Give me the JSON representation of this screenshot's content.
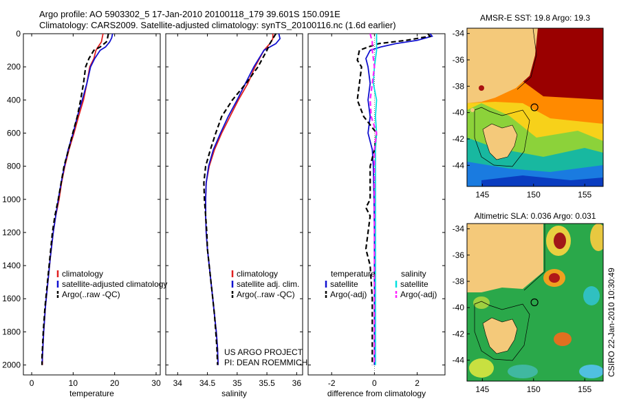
{
  "title": {
    "line1": "Argo profile: AO 5903302_5 17-Jan-2010 20100118_179 39.601S 150.091E",
    "line2": "Climatology: CARS2009. Satellite-adjusted climatology: synTS_20100116.nc (1.6d earlier)"
  },
  "colors": {
    "climatology": "#e02020",
    "satellite": "#1010d0",
    "argo": "#000000",
    "sat_salinity": "#00e0e0",
    "argo_salinity": "#ff20ff"
  },
  "chart_data": [
    {
      "type": "line",
      "name": "temperature-panel",
      "xlabel": "temperature",
      "ylabel": "",
      "xlim": [
        -2,
        31
      ],
      "ylim": [
        2060,
        0
      ],
      "xticks": [
        0,
        10,
        20,
        30
      ],
      "yticks": [
        0,
        200,
        400,
        600,
        800,
        1000,
        1200,
        1400,
        1600,
        1800,
        2000
      ],
      "legend": [
        "climatology",
        "satellite-adjusted climatology",
        "Argo(..raw -QC)"
      ],
      "series": [
        {
          "name": "climatology",
          "style": "solid",
          "color": "#e02020",
          "points": [
            [
              17.2,
              0
            ],
            [
              17.0,
              25
            ],
            [
              16.8,
              50
            ],
            [
              16.0,
              80
            ],
            [
              15.5,
              100
            ],
            [
              15.0,
              150
            ],
            [
              14.0,
              200
            ],
            [
              13.3,
              300
            ],
            [
              12.5,
              400
            ],
            [
              11.3,
              500
            ],
            [
              10.2,
              600
            ],
            [
              9.0,
              700
            ],
            [
              8.0,
              800
            ],
            [
              7.2,
              900
            ],
            [
              6.6,
              1000
            ],
            [
              5.8,
              1100
            ],
            [
              5.2,
              1200
            ],
            [
              4.5,
              1350
            ],
            [
              3.9,
              1500
            ],
            [
              3.3,
              1650
            ],
            [
              2.9,
              1800
            ],
            [
              2.6,
              1950
            ],
            [
              2.6,
              2000
            ]
          ]
        },
        {
          "name": "satellite",
          "style": "solid",
          "color": "#1010d0",
          "points": [
            [
              19.5,
              0
            ],
            [
              19.3,
              25
            ],
            [
              18.8,
              50
            ],
            [
              17.8,
              80
            ],
            [
              16.5,
              100
            ],
            [
              15.2,
              150
            ],
            [
              14.2,
              200
            ],
            [
              13.3,
              300
            ],
            [
              12.2,
              400
            ],
            [
              11.0,
              500
            ],
            [
              10.0,
              600
            ],
            [
              8.8,
              700
            ],
            [
              7.9,
              800
            ],
            [
              7.1,
              900
            ],
            [
              6.4,
              1000
            ],
            [
              5.8,
              1100
            ],
            [
              5.2,
              1200
            ],
            [
              4.5,
              1350
            ],
            [
              3.9,
              1500
            ],
            [
              3.3,
              1650
            ],
            [
              2.9,
              1800
            ],
            [
              2.6,
              1950
            ],
            [
              2.5,
              2000
            ]
          ]
        },
        {
          "name": "argo",
          "style": "dashed",
          "color": "#000000",
          "points": [
            [
              18.5,
              0
            ],
            [
              18.3,
              25
            ],
            [
              18.0,
              50
            ],
            [
              16.5,
              80
            ],
            [
              15.0,
              100
            ],
            [
              13.8,
              150
            ],
            [
              13.0,
              200
            ],
            [
              12.5,
              300
            ],
            [
              11.8,
              400
            ],
            [
              11.0,
              500
            ],
            [
              9.9,
              600
            ],
            [
              8.9,
              700
            ],
            [
              7.8,
              800
            ],
            [
              7.1,
              900
            ],
            [
              6.4,
              1000
            ],
            [
              5.6,
              1100
            ],
            [
              5.0,
              1200
            ],
            [
              4.4,
              1350
            ],
            [
              3.8,
              1500
            ],
            [
              3.2,
              1650
            ],
            [
              2.8,
              1800
            ],
            [
              2.5,
              1950
            ],
            [
              2.5,
              2000
            ]
          ]
        }
      ]
    },
    {
      "type": "line",
      "name": "salinity-panel",
      "xlabel": "salinity",
      "ylabel": "",
      "xlim": [
        33.8,
        36.1
      ],
      "ylim": [
        2060,
        0
      ],
      "xticks": [
        34,
        34.5,
        35,
        35.5,
        36
      ],
      "yticks": [],
      "legend": [
        "climatology",
        "satellite adj. clim.",
        "Argo(..raw -QC)"
      ],
      "annotation": [
        "US ARGO PROJECT",
        "PI: DEAN ROEMMICH"
      ],
      "series": [
        {
          "name": "climatology",
          "style": "solid",
          "color": "#e02020",
          "points": [
            [
              35.6,
              0
            ],
            [
              35.6,
              30
            ],
            [
              35.55,
              60
            ],
            [
              35.45,
              100
            ],
            [
              35.3,
              200
            ],
            [
              35.18,
              300
            ],
            [
              35.02,
              400
            ],
            [
              34.88,
              500
            ],
            [
              34.74,
              600
            ],
            [
              34.62,
              700
            ],
            [
              34.53,
              800
            ],
            [
              34.48,
              900
            ],
            [
              34.47,
              1000
            ],
            [
              34.47,
              1100
            ],
            [
              34.48,
              1200
            ],
            [
              34.5,
              1300
            ],
            [
              34.53,
              1400
            ],
            [
              34.56,
              1500
            ],
            [
              34.59,
              1600
            ],
            [
              34.62,
              1700
            ],
            [
              34.65,
              1800
            ],
            [
              34.67,
              1900
            ],
            [
              34.68,
              2000
            ]
          ]
        },
        {
          "name": "satellite",
          "style": "solid",
          "color": "#1010d0",
          "points": [
            [
              35.7,
              0
            ],
            [
              35.72,
              30
            ],
            [
              35.65,
              60
            ],
            [
              35.45,
              100
            ],
            [
              35.28,
              200
            ],
            [
              35.14,
              300
            ],
            [
              35.0,
              400
            ],
            [
              34.85,
              500
            ],
            [
              34.72,
              600
            ],
            [
              34.6,
              700
            ],
            [
              34.52,
              800
            ],
            [
              34.48,
              900
            ],
            [
              34.47,
              1000
            ],
            [
              34.47,
              1100
            ],
            [
              34.48,
              1200
            ],
            [
              34.5,
              1300
            ],
            [
              34.53,
              1400
            ],
            [
              34.56,
              1500
            ],
            [
              34.59,
              1600
            ],
            [
              34.62,
              1700
            ],
            [
              34.65,
              1800
            ],
            [
              34.67,
              1900
            ],
            [
              34.68,
              2000
            ]
          ]
        },
        {
          "name": "argo",
          "style": "dashed",
          "color": "#000000",
          "points": [
            [
              35.65,
              0
            ],
            [
              35.6,
              30
            ],
            [
              35.55,
              60
            ],
            [
              35.5,
              100
            ],
            [
              35.35,
              200
            ],
            [
              35.15,
              300
            ],
            [
              34.92,
              400
            ],
            [
              34.74,
              500
            ],
            [
              34.64,
              600
            ],
            [
              34.55,
              700
            ],
            [
              34.47,
              800
            ],
            [
              34.44,
              900
            ],
            [
              34.45,
              1000
            ],
            [
              34.47,
              1100
            ],
            [
              34.49,
              1200
            ],
            [
              34.5,
              1300
            ],
            [
              34.53,
              1400
            ],
            [
              34.56,
              1500
            ],
            [
              34.59,
              1600
            ],
            [
              34.62,
              1700
            ],
            [
              34.64,
              1800
            ],
            [
              34.66,
              1900
            ],
            [
              34.67,
              2000
            ]
          ]
        }
      ]
    },
    {
      "type": "line",
      "name": "difference-panel",
      "xlabel": "difference from climatology",
      "ylabel": "",
      "xlim": [
        -3.1,
        3.3
      ],
      "ylim": [
        2060,
        0
      ],
      "xticks": [
        -2,
        0,
        2
      ],
      "yticks": [],
      "legend_headers": [
        "temperature",
        "salinity"
      ],
      "legend": [
        "satellite",
        "Argo(-adj)",
        "satellite",
        "Argo(-adj)"
      ],
      "series": [
        {
          "name": "temp-satellite",
          "style": "solid",
          "color": "#1010d0",
          "points": [
            [
              2.6,
              0
            ],
            [
              2.7,
              15
            ],
            [
              2.0,
              40
            ],
            [
              1.0,
              60
            ],
            [
              0.3,
              80
            ],
            [
              -0.2,
              100
            ],
            [
              -0.4,
              150
            ],
            [
              -0.3,
              200
            ],
            [
              -0.2,
              300
            ],
            [
              -0.3,
              400
            ],
            [
              -0.2,
              500
            ],
            [
              -0.3,
              600
            ],
            [
              -0.1,
              700
            ],
            [
              -0.05,
              800
            ],
            [
              -0.02,
              1000
            ],
            [
              0,
              1200
            ],
            [
              0,
              1600
            ],
            [
              0,
              2000
            ]
          ]
        },
        {
          "name": "temp-argo",
          "style": "dashed",
          "color": "#000000",
          "points": [
            [
              2.5,
              0
            ],
            [
              2.6,
              15
            ],
            [
              1.5,
              40
            ],
            [
              0.2,
              60
            ],
            [
              -0.3,
              80
            ],
            [
              -0.7,
              100
            ],
            [
              -0.8,
              160
            ],
            [
              -0.6,
              200
            ],
            [
              -0.7,
              300
            ],
            [
              -0.8,
              400
            ],
            [
              -0.5,
              500
            ],
            [
              0.1,
              600
            ],
            [
              0.0,
              700
            ],
            [
              -0.2,
              800
            ],
            [
              -0.2,
              900
            ],
            [
              -0.2,
              1000
            ],
            [
              -0.4,
              1050
            ],
            [
              -0.2,
              1100
            ],
            [
              -0.4,
              1300
            ],
            [
              -0.2,
              1400
            ],
            [
              -0.1,
              1600
            ],
            [
              -0.1,
              1800
            ],
            [
              -0.1,
              2000
            ]
          ]
        },
        {
          "name": "sal-satellite",
          "style": "solid",
          "color": "#00e0e0",
          "points": [
            [
              0.1,
              0
            ],
            [
              0.1,
              100
            ],
            [
              0.0,
              200
            ],
            [
              -0.05,
              300
            ],
            [
              0.1,
              400
            ],
            [
              0.05,
              500
            ],
            [
              0.1,
              600
            ],
            [
              0.05,
              700
            ],
            [
              0.05,
              800
            ],
            [
              0.05,
              1000
            ],
            [
              0.05,
              1400
            ],
            [
              0.05,
              2000
            ]
          ]
        },
        {
          "name": "sal-argo",
          "style": "dashed",
          "color": "#ff20ff",
          "points": [
            [
              -0.2,
              0
            ],
            [
              -0.1,
              50
            ],
            [
              -0.1,
              100
            ],
            [
              0.0,
              200
            ],
            [
              -0.1,
              300
            ],
            [
              -0.2,
              400
            ],
            [
              -0.15,
              500
            ],
            [
              0.1,
              600
            ],
            [
              0.0,
              700
            ],
            [
              0.0,
              800
            ],
            [
              0.0,
              1000
            ],
            [
              0.0,
              1400
            ],
            [
              0.0,
              2000
            ]
          ]
        }
      ]
    },
    {
      "type": "heatmap",
      "name": "sst-map",
      "title": "AMSR-E SST: 19.8  Argo: 19.3",
      "xlim": [
        143.5,
        156.8
      ],
      "ylim": [
        -45.6,
        -33.6
      ],
      "xticks": [
        145,
        150,
        155
      ],
      "yticks": [
        -34,
        -36,
        -38,
        -40,
        -42,
        -44
      ],
      "profile_location": [
        150.091,
        -39.601
      ]
    },
    {
      "type": "heatmap",
      "name": "sla-map",
      "title": "Altimetric SLA: 0.036  Argo: 0.031",
      "xlim": [
        143.5,
        156.8
      ],
      "ylim": [
        -45.6,
        -33.6
      ],
      "xticks": [
        145,
        150,
        155
      ],
      "yticks": [
        -34,
        -36,
        -38,
        -40,
        -42,
        -44
      ],
      "profile_location": [
        150.091,
        -39.601
      ]
    }
  ],
  "credit": "CSIRO 22-Jan-2010 10:30:49"
}
